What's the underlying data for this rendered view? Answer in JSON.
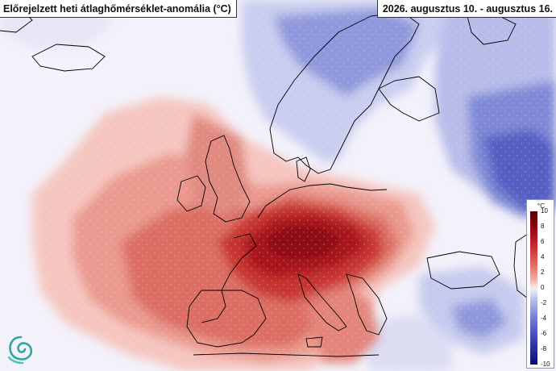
{
  "header": {
    "title": "Előrejelzett heti átlaghőmérséklet-anomália (°C)",
    "date_range": "2026. augusztus 10. - augusztus 16."
  },
  "legend": {
    "unit": "°C",
    "ticks": [
      "10",
      "8",
      "6",
      "4",
      "2",
      "0",
      "-2",
      "-4",
      "-6",
      "-8",
      "-10"
    ]
  },
  "colors": {
    "warm_strong": "#9b0a16",
    "warm": "#d6463f",
    "warm_light": "#f2b4ab",
    "neutral": "#f4f2fb",
    "cool_light": "#c9cdef",
    "cool": "#7f89d6",
    "cool_strong": "#3b44ad",
    "coastline": "#000000"
  },
  "icons": {
    "logo": "spiral-wave-logo"
  }
}
